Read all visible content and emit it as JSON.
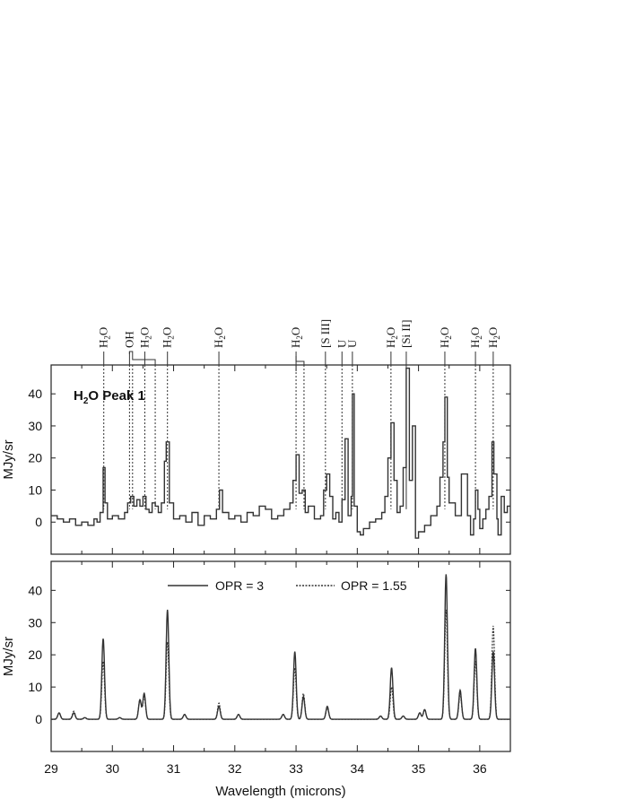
{
  "chart_data": [
    {
      "type": "line",
      "panel": "top",
      "title": "",
      "xlabel": "",
      "ylabel": "MJy/sr",
      "xlim": [
        29.0,
        36.5
      ],
      "ylim": [
        -10,
        49
      ],
      "yticks": [
        0,
        10,
        20,
        30,
        40
      ],
      "yticks_labels": [
        "0",
        "10",
        "20",
        "30",
        "40"
      ],
      "annotation": {
        "prefix": "H",
        "sub": "2",
        "suffix": "O Peak 1"
      },
      "step": true,
      "line_color": "#333333",
      "series": [
        {
          "values_x": [
            29.0,
            29.1,
            29.2,
            29.3,
            29.4,
            29.5,
            29.6,
            29.7,
            29.75,
            29.8,
            29.85,
            29.88,
            29.92,
            30.0,
            30.1,
            30.2,
            30.25,
            30.3,
            30.35,
            30.4,
            30.45,
            30.5,
            30.55,
            30.6,
            30.65,
            30.7,
            30.75,
            30.8,
            30.85,
            30.88,
            30.93,
            31.0,
            31.1,
            31.2,
            31.3,
            31.4,
            31.5,
            31.6,
            31.7,
            31.75,
            31.8,
            31.9,
            32.0,
            32.1,
            32.2,
            32.3,
            32.4,
            32.5,
            32.6,
            32.7,
            32.8,
            32.9,
            32.95,
            33.0,
            33.05,
            33.1,
            33.15,
            33.2,
            33.3,
            33.4,
            33.45,
            33.5,
            33.55,
            33.6,
            33.65,
            33.7,
            33.75,
            33.8,
            33.85,
            33.9,
            33.92,
            33.95,
            34.0,
            34.05,
            34.1,
            34.2,
            34.3,
            34.4,
            34.45,
            34.5,
            34.55,
            34.6,
            34.65,
            34.7,
            34.75,
            34.8,
            34.85,
            34.9,
            34.95,
            35.0,
            35.1,
            35.2,
            35.3,
            35.35,
            35.4,
            35.43,
            35.47,
            35.5,
            35.6,
            35.7,
            35.8,
            35.85,
            35.9,
            35.93,
            35.97,
            36.0,
            36.05,
            36.1,
            36.15,
            36.2,
            36.23,
            36.28,
            36.3,
            36.35,
            36.4,
            36.45,
            36.5
          ],
          "values_y": [
            2,
            1,
            0,
            1,
            -1,
            0,
            -1,
            1,
            0,
            3,
            17,
            6,
            1,
            2,
            1,
            3,
            6,
            8,
            5,
            7,
            5,
            8,
            4,
            3,
            6,
            5,
            3,
            6,
            19,
            25,
            6,
            1,
            2,
            0,
            3,
            -1,
            2,
            1,
            4,
            10,
            3,
            1,
            2,
            0,
            3,
            2,
            5,
            4,
            1,
            2,
            4,
            6,
            13,
            21,
            9,
            10,
            3,
            5,
            1,
            2,
            10,
            15,
            8,
            1,
            3,
            0,
            7,
            26,
            2,
            8,
            40,
            5,
            -3,
            -4,
            -2,
            0,
            1,
            3,
            8,
            20,
            31,
            13,
            3,
            5,
            17,
            48,
            13,
            30,
            -5,
            -3,
            -1,
            2,
            5,
            14,
            25,
            39,
            14,
            6,
            2,
            15,
            2,
            -4,
            1,
            10,
            4,
            -2,
            1,
            4,
            8,
            25,
            15,
            1,
            -4,
            8,
            3,
            5,
            5
          ]
        }
      ],
      "line_ids": [
        {
          "x": 29.86,
          "top": "H2O",
          "style": "dotted"
        },
        {
          "x": 30.28,
          "top": "OH",
          "style": "dotted"
        },
        {
          "x": 30.33,
          "top": "",
          "style": "dotted"
        },
        {
          "x": 30.53,
          "top": "H2O",
          "style": "dotted"
        },
        {
          "x": 30.7,
          "top": "",
          "style": "dotted"
        },
        {
          "x": 30.9,
          "top": "H2O",
          "style": "dotted"
        },
        {
          "x": 31.74,
          "top": "H2O",
          "style": "dotted"
        },
        {
          "x": 33.0,
          "top": "H2O",
          "style": "dotted"
        },
        {
          "x": 33.13,
          "top": "",
          "style": "dotted"
        },
        {
          "x": 33.48,
          "top": "[S III]",
          "style": "dotted"
        },
        {
          "x": 33.75,
          "top": "U",
          "style": "dotted"
        },
        {
          "x": 33.92,
          "top": "U",
          "style": "dotted"
        },
        {
          "x": 34.55,
          "top": "H2O",
          "style": "dotted"
        },
        {
          "x": 34.8,
          "top": "[Si II]",
          "style": "solid"
        },
        {
          "x": 35.43,
          "top": "H2O",
          "style": "dotted"
        },
        {
          "x": 35.93,
          "top": "H2O",
          "style": "dotted"
        },
        {
          "x": 36.22,
          "top": "H2O",
          "style": "dotted"
        }
      ]
    },
    {
      "type": "line",
      "panel": "bottom",
      "title": "",
      "xlabel": "Wavelength (microns)",
      "ylabel": "MJy/sr",
      "xlim": [
        29.0,
        36.5
      ],
      "ylim": [
        -10,
        49
      ],
      "yticks": [
        0,
        10,
        20,
        30,
        40
      ],
      "yticks_labels": [
        "0",
        "10",
        "20",
        "30",
        "40"
      ],
      "xticks": [
        29,
        30,
        31,
        32,
        33,
        34,
        35,
        36
      ],
      "xticks_labels": [
        "29",
        "30",
        "31",
        "32",
        "33",
        "34",
        "35",
        "36"
      ],
      "legend": "top",
      "series": [
        {
          "name": "OPR = 3",
          "style": "solid",
          "color": "#333333",
          "peaks": [
            [
              29.13,
              2
            ],
            [
              29.37,
              2
            ],
            [
              29.55,
              0.5
            ],
            [
              29.85,
              25
            ],
            [
              30.12,
              0.5
            ],
            [
              30.45,
              6
            ],
            [
              30.52,
              8
            ],
            [
              30.9,
              34
            ],
            [
              31.18,
              1.5
            ],
            [
              31.74,
              4
            ],
            [
              32.06,
              1.5
            ],
            [
              32.79,
              1.5
            ],
            [
              32.98,
              21
            ],
            [
              33.12,
              7
            ],
            [
              33.51,
              4
            ],
            [
              34.38,
              1
            ],
            [
              34.56,
              16
            ],
            [
              34.75,
              1
            ],
            [
              35.02,
              2
            ],
            [
              35.1,
              3
            ],
            [
              35.45,
              45
            ],
            [
              35.68,
              9
            ],
            [
              35.93,
              22
            ],
            [
              36.22,
              21
            ]
          ]
        },
        {
          "name": "OPR = 1.55",
          "style": "dotted",
          "color": "#333333",
          "peaks": [
            [
              29.13,
              2
            ],
            [
              29.37,
              2.5
            ],
            [
              29.55,
              0.5
            ],
            [
              29.85,
              18
            ],
            [
              30.12,
              0.5
            ],
            [
              30.45,
              6
            ],
            [
              30.52,
              7
            ],
            [
              30.9,
              24
            ],
            [
              31.18,
              1.5
            ],
            [
              31.74,
              5
            ],
            [
              32.06,
              1.5
            ],
            [
              32.79,
              1.5
            ],
            [
              32.98,
              16
            ],
            [
              33.12,
              8
            ],
            [
              33.51,
              3.5
            ],
            [
              34.38,
              1
            ],
            [
              34.56,
              10
            ],
            [
              34.75,
              1
            ],
            [
              35.02,
              2
            ],
            [
              35.1,
              3
            ],
            [
              35.45,
              34
            ],
            [
              35.68,
              8
            ],
            [
              35.93,
              18
            ],
            [
              36.22,
              29
            ]
          ]
        }
      ]
    }
  ]
}
